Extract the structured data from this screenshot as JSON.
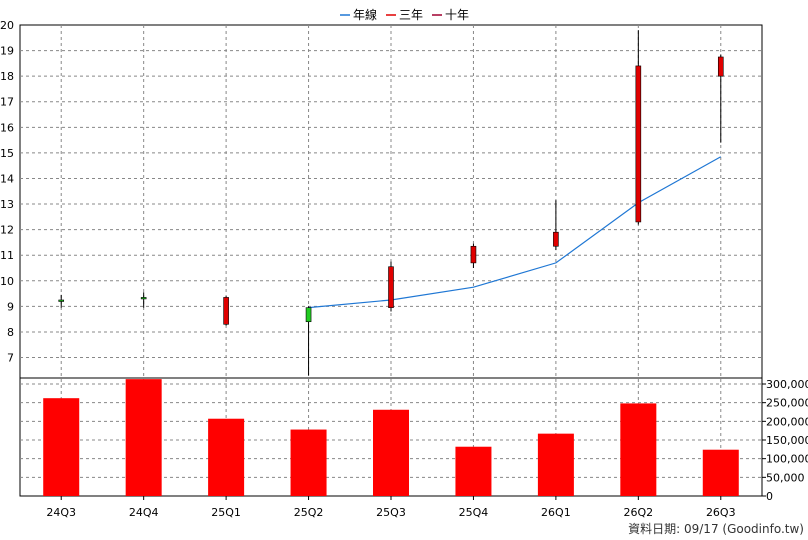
{
  "chart_data": {
    "type": "candlestick",
    "legend": [
      {
        "name": "年線",
        "color": "#1f77d4"
      },
      {
        "name": "三年",
        "color": "#e00000"
      },
      {
        "name": "十年",
        "color": "#a00030"
      }
    ],
    "categories": [
      "24Q3",
      "24Q4",
      "25Q1",
      "25Q2",
      "25Q3",
      "25Q4",
      "26Q1",
      "26Q2",
      "26Q3"
    ],
    "price_ylim": [
      6.2,
      20
    ],
    "price_ticks": [
      7,
      8,
      9,
      10,
      11,
      12,
      13,
      14,
      15,
      16,
      17,
      18,
      19,
      20
    ],
    "candles": [
      {
        "open": 9.25,
        "close": 9.2,
        "high": 9.45,
        "low": 8.95
      },
      {
        "open": 9.35,
        "close": 9.3,
        "high": 9.55,
        "low": 8.95
      },
      {
        "open": 8.3,
        "close": 9.35,
        "high": 9.4,
        "low": 8.25
      },
      {
        "open": 8.95,
        "close": 8.4,
        "high": 9.0,
        "low": 6.3
      },
      {
        "open": 8.95,
        "close": 10.55,
        "high": 10.75,
        "low": 8.8
      },
      {
        "open": 10.7,
        "close": 11.35,
        "high": 11.45,
        "low": 10.5
      },
      {
        "open": 11.35,
        "close": 11.9,
        "high": 13.15,
        "low": 11.2
      },
      {
        "open": 12.3,
        "close": 18.4,
        "high": 19.8,
        "low": 12.2
      },
      {
        "open": 18.0,
        "close": 18.75,
        "high": 18.85,
        "low": 15.4
      }
    ],
    "annual_line": [
      null,
      null,
      null,
      8.95,
      9.25,
      9.75,
      10.7,
      13.05,
      14.85
    ],
    "volume": [
      262000,
      313000,
      207000,
      178000,
      231000,
      132000,
      167000,
      248000,
      124000
    ],
    "volume_ylim": [
      0,
      300000
    ],
    "volume_ticks": [
      0,
      50000,
      100000,
      150000,
      200000,
      250000,
      300000
    ],
    "volume_tick_labels": [
      "0",
      "50,000",
      "100,000",
      "150,000",
      "200,000",
      "250,000",
      "300,000"
    ],
    "up_color": "#e00000",
    "down_color": "#22cc22",
    "volume_color": "#ff0000"
  },
  "footer": {
    "date_text": "資料日期: 09/17  (Goodinfo.tw)"
  }
}
